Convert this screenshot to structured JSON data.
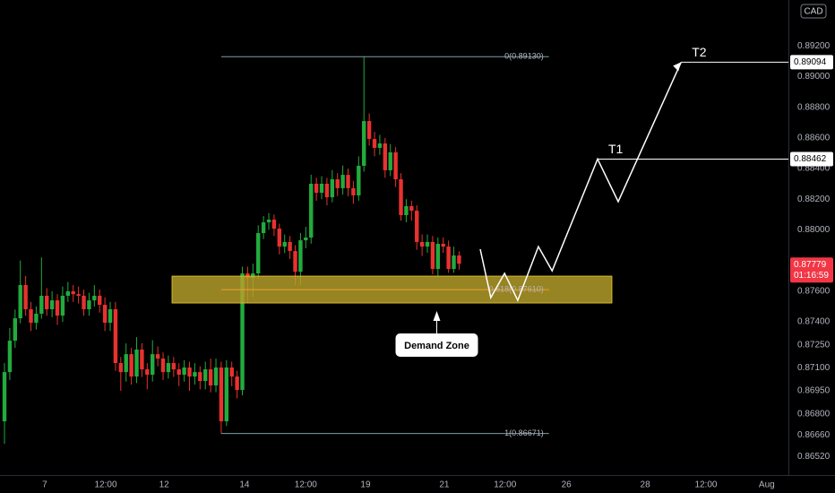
{
  "chart_data": {
    "type": "candlestick",
    "currency": "CAD",
    "xlim": [
      -0.85,
      148.3
    ],
    "ylim": [
      0.864,
      0.895
    ],
    "xticks": [
      {
        "value": 7.6,
        "label": "7"
      },
      {
        "value": 19.15,
        "label": "12:00"
      },
      {
        "value": 30.2,
        "label": "12"
      },
      {
        "value": 45.4,
        "label": "14"
      },
      {
        "value": 57.0,
        "label": "12:00"
      },
      {
        "value": 68.3,
        "label": "19"
      },
      {
        "value": 83.2,
        "label": "21"
      },
      {
        "value": 94.7,
        "label": "12:00"
      },
      {
        "value": 106.3,
        "label": "26"
      },
      {
        "value": 121.2,
        "label": "28"
      },
      {
        "value": 132.7,
        "label": "12:00"
      },
      {
        "value": 144.2,
        "label": "Aug"
      }
    ],
    "yticks": [
      {
        "value": 0.892,
        "label": "0.89200"
      },
      {
        "value": 0.89,
        "label": "0.89000"
      },
      {
        "value": 0.888,
        "label": "0.88800"
      },
      {
        "value": 0.886,
        "label": "0.88600"
      },
      {
        "value": 0.884,
        "label": "0.88400"
      },
      {
        "value": 0.882,
        "label": "0.88200"
      },
      {
        "value": 0.88,
        "label": "0.88000"
      },
      {
        "value": 0.876,
        "label": "0.87600"
      },
      {
        "value": 0.874,
        "label": "0.87400"
      },
      {
        "value": 0.8725,
        "label": "0.87250"
      },
      {
        "value": 0.871,
        "label": "0.87100"
      },
      {
        "value": 0.8695,
        "label": "0.86950"
      },
      {
        "value": 0.868,
        "label": "0.86800"
      },
      {
        "value": 0.8666,
        "label": "0.86660"
      },
      {
        "value": 0.8652,
        "label": "0.86520"
      }
    ],
    "up_color": "#22ab3e",
    "down_color": "#e8322f",
    "open": [
      0.86751,
      0.87072,
      0.87277,
      0.87423,
      0.8764,
      0.87482,
      0.87394,
      0.87453,
      0.8757,
      0.87482,
      0.8754,
      0.87441,
      0.8757,
      0.87599,
      0.87581,
      0.8757,
      0.87482,
      0.8754,
      0.8757,
      0.87511,
      0.87394,
      0.87482,
      0.87131,
      0.87072,
      0.87189,
      0.87043,
      0.87219,
      0.8709,
      0.87055,
      0.87189,
      0.8716,
      0.87072,
      0.87131,
      0.8709,
      0.87055,
      0.87102,
      0.87043,
      0.87072,
      0.87014,
      0.8709,
      0.86985,
      0.87102,
      0.86751,
      0.87102,
      0.87043,
      0.86955,
      0.87716,
      0.87687,
      0.87716,
      0.87979,
      0.88049,
      0.88067,
      0.88008,
      0.87891,
      0.87921,
      0.87862,
      0.87727,
      0.87932,
      0.8795,
      0.88301,
      0.88242,
      0.88301,
      0.88213,
      0.8833,
      0.88272,
      0.88359,
      0.88272,
      0.88225,
      0.88418,
      0.8871,
      0.88593,
      0.88535,
      0.88564,
      0.88389,
      0.88506,
      0.8833,
      0.88096,
      0.88155,
      0.88125,
      0.87921,
      0.87891,
      0.87921,
      0.87745,
      0.87909,
      0.87891,
      0.87745,
      0.87833
    ],
    "high": [
      0.87131,
      0.8736,
      0.8748,
      0.878,
      0.877,
      0.8753,
      0.875,
      0.8782,
      0.8762,
      0.876,
      0.8758,
      0.8763,
      0.8766,
      0.8764,
      0.8763,
      0.8761,
      0.8759,
      0.8764,
      0.8761,
      0.8756,
      0.8753,
      0.8753,
      0.8717,
      0.8726,
      0.8723,
      0.873,
      0.8726,
      0.8713,
      0.8728,
      0.8724,
      0.872,
      0.8718,
      0.8717,
      0.8713,
      0.8715,
      0.8714,
      0.8713,
      0.8711,
      0.8714,
      0.8716,
      0.8716,
      0.8714,
      0.8715,
      0.8714,
      0.8708,
      0.8776,
      0.8776,
      0.8778,
      0.8803,
      0.8809,
      0.8811,
      0.881,
      0.8804,
      0.8797,
      0.8796,
      0.879,
      0.8798,
      0.8802,
      0.8836,
      0.8834,
      0.8835,
      0.8834,
      0.8839,
      0.8837,
      0.8842,
      0.884,
      0.8832,
      0.8848,
      0.8913,
      0.8876,
      0.8864,
      0.8862,
      0.886,
      0.8856,
      0.8854,
      0.8837,
      0.882,
      0.8819,
      0.8816,
      0.8797,
      0.8797,
      0.8796,
      0.8795,
      0.8795,
      0.8793,
      0.8789,
      0.8786
    ],
    "low": [
      0.86604,
      0.8702,
      0.8723,
      0.8739,
      0.8744,
      0.8734,
      0.8735,
      0.8742,
      0.8744,
      0.8743,
      0.8738,
      0.874,
      0.8753,
      0.8753,
      0.8752,
      0.8744,
      0.8744,
      0.875,
      0.8746,
      0.8734,
      0.8734,
      0.8708,
      0.8695,
      0.8701,
      0.8699,
      0.87,
      0.8704,
      0.8696,
      0.8701,
      0.8711,
      0.8702,
      0.8703,
      0.8704,
      0.8698,
      0.8701,
      0.8695,
      0.8699,
      0.8696,
      0.8696,
      0.8694,
      0.8694,
      0.86671,
      0.8672,
      0.8698,
      0.869,
      0.8692,
      0.8752,
      0.8756,
      0.8768,
      0.8794,
      0.88,
      0.8796,
      0.8784,
      0.8785,
      0.8781,
      0.8764,
      0.8764,
      0.8788,
      0.8791,
      0.8819,
      0.882,
      0.8816,
      0.8818,
      0.8822,
      0.8823,
      0.8822,
      0.8817,
      0.8819,
      0.8838,
      0.8855,
      0.8848,
      0.8849,
      0.8834,
      0.8835,
      0.8828,
      0.8806,
      0.8805,
      0.8806,
      0.8787,
      0.8783,
      0.8785,
      0.8771,
      0.877,
      0.8785,
      0.8772,
      0.8772,
      0.8774
    ],
    "close": [
      0.87072,
      0.87277,
      0.87423,
      0.8764,
      0.87482,
      0.87394,
      0.87453,
      0.8757,
      0.87482,
      0.8754,
      0.87441,
      0.8757,
      0.87599,
      0.87581,
      0.8757,
      0.87482,
      0.8754,
      0.8757,
      0.87511,
      0.87394,
      0.87482,
      0.87131,
      0.87072,
      0.87189,
      0.87043,
      0.87219,
      0.8709,
      0.87055,
      0.87189,
      0.8716,
      0.87072,
      0.87131,
      0.8709,
      0.87055,
      0.87102,
      0.87043,
      0.87072,
      0.87014,
      0.8709,
      0.86985,
      0.87102,
      0.86751,
      0.87102,
      0.87043,
      0.86955,
      0.87716,
      0.87687,
      0.87716,
      0.87979,
      0.88049,
      0.88067,
      0.88008,
      0.87891,
      0.87921,
      0.87862,
      0.87727,
      0.87932,
      0.8795,
      0.88301,
      0.88242,
      0.88301,
      0.88213,
      0.8833,
      0.88272,
      0.88359,
      0.88272,
      0.88225,
      0.88418,
      0.8871,
      0.88593,
      0.88535,
      0.88564,
      0.88389,
      0.88506,
      0.8833,
      0.88096,
      0.88155,
      0.88125,
      0.87921,
      0.87891,
      0.87921,
      0.87745,
      0.87909,
      0.87891,
      0.87745,
      0.87833,
      0.87779
    ],
    "fib": {
      "x": [
        41,
        103
      ],
      "levels": [
        {
          "label": "0(0.89130)",
          "value": 0.8913,
          "color": "#7f9eac"
        },
        {
          "label": "0.618(0.87610)",
          "value": 0.8761,
          "color": "#f0a030"
        },
        {
          "label": "1(0.86671)",
          "value": 0.86671,
          "color": "#7f9eac"
        }
      ]
    },
    "demand_zone": {
      "label": "Demand Zone",
      "top": 0.87698,
      "bottom": 0.87523,
      "x": [
        31.7,
        114.9
      ],
      "color": "#b8a12a"
    },
    "projection": {
      "x": [
        90.0,
        92.0,
        94.6,
        97.1,
        101.0,
        103.6,
        112.2,
        116.1,
        128.0
      ],
      "y": [
        0.87874,
        0.87558,
        0.87716,
        0.8754,
        0.87891,
        0.87733,
        0.88462,
        0.88184,
        0.89094
      ]
    },
    "targets": [
      {
        "label": "T1",
        "x": 112.2,
        "value": 0.88462
      },
      {
        "label": "T2",
        "x": 128.0,
        "value": 0.89094
      }
    ],
    "current_price": {
      "value": 0.87779,
      "countdown": "01:16:59",
      "color": "#f23645"
    }
  }
}
